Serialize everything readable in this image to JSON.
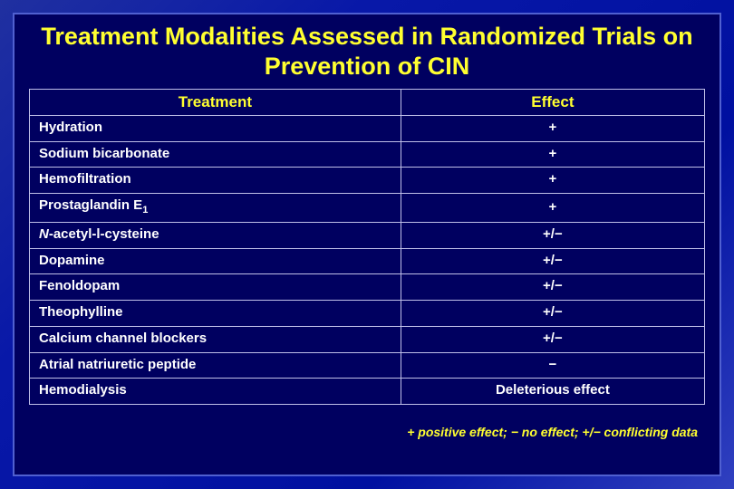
{
  "title": "Treatment Modalities Assessed in Randomized Trials on Prevention of CIN",
  "table": {
    "headers": {
      "treatment": "Treatment",
      "effect": "Effect"
    },
    "rows": [
      {
        "treatment": "Hydration",
        "effect": "+"
      },
      {
        "treatment": "Sodium bicarbonate",
        "effect": "+"
      },
      {
        "treatment": "Hemofiltration",
        "effect": "+"
      },
      {
        "treatment_html": "Prostaglandin E<span class=\"subscript\">1</span>",
        "effect": "+"
      },
      {
        "treatment_html": "<span class=\"italic\">N</span>-acetyl-l-cysteine",
        "effect": "+/−"
      },
      {
        "treatment": "Dopamine",
        "effect": "+/−"
      },
      {
        "treatment": "Fenoldopam",
        "effect": "+/−"
      },
      {
        "treatment": "Theophylline",
        "effect": "+/−"
      },
      {
        "treatment": "Calcium channel blockers",
        "effect": "+/−"
      },
      {
        "treatment": "Atrial natriuretic peptide",
        "effect": "−"
      },
      {
        "treatment": "Hemodialysis",
        "effect": "Deleterious effect"
      }
    ]
  },
  "footnote": "+ positive effect; − no effect; +/− conflicting data",
  "colors": {
    "title_color": "#ffff30",
    "text_color": "#ffffff",
    "cell_border": "#bfbfe8",
    "inner_bg": "#000060",
    "inner_border": "#5060d0"
  }
}
